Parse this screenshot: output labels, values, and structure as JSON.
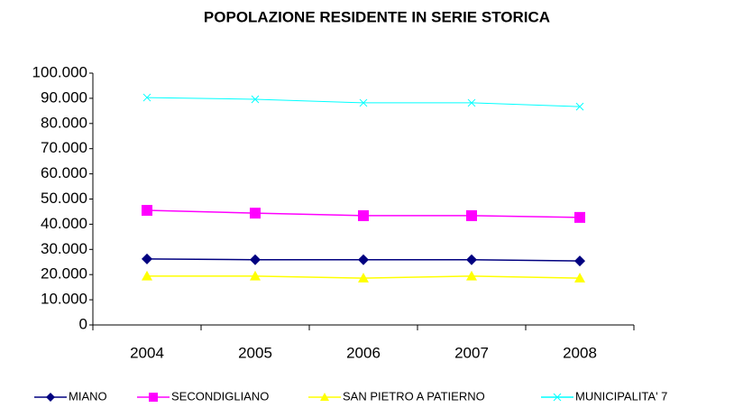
{
  "chart_data": {
    "type": "line",
    "title": "POPOLAZIONE RESIDENTE IN SERIE STORICA",
    "categories": [
      "2004",
      "2005",
      "2006",
      "2007",
      "2008"
    ],
    "series": [
      {
        "name": "MIANO",
        "color": "#000080",
        "marker": "diamond",
        "values": [
          26200,
          25900,
          25900,
          25900,
          25400
        ]
      },
      {
        "name": "SECONDIGLIANO",
        "color": "#ff00ff",
        "marker": "square",
        "values": [
          45500,
          44400,
          43400,
          43400,
          42700
        ]
      },
      {
        "name": "SAN PIETRO A PATIERNO",
        "color": "#ffff00",
        "marker": "triangle",
        "values": [
          19400,
          19400,
          18600,
          19400,
          18600
        ]
      },
      {
        "name": "MUNICIPALITA' 7",
        "color": "#00ffff",
        "marker": "x",
        "values": [
          90300,
          89600,
          88200,
          88200,
          86700
        ]
      }
    ],
    "ylim": [
      0,
      100000
    ],
    "yticks": [
      0,
      {
        "value": 10000,
        "label": "10.000"
      },
      {
        "value": 20000,
        "label": "20.000"
      },
      {
        "value": 30000,
        "label": "30.000"
      },
      {
        "value": 40000,
        "label": "40.000"
      },
      {
        "value": 50000,
        "label": "50.000"
      },
      {
        "value": 60000,
        "label": "60.000"
      },
      {
        "value": 70000,
        "label": "70.000"
      },
      {
        "value": 80000,
        "label": "80.000"
      },
      {
        "value": 90000,
        "label": "90.000"
      },
      {
        "value": 100000,
        "label": "100.000"
      }
    ],
    "legend": "bottom"
  }
}
